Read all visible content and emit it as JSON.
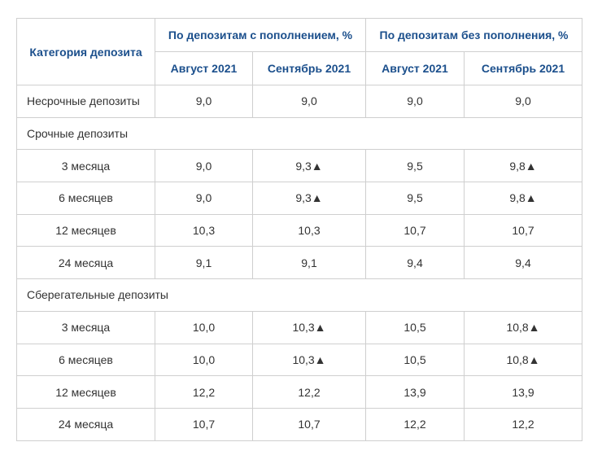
{
  "table": {
    "header": {
      "category": "Категория депозита",
      "groups": [
        "По депозитам с пополнением, %",
        "По депозитам без пополнения, %"
      ],
      "months": [
        "Август 2021",
        "Сентябрь 2021",
        "Август 2021",
        "Сентябрь 2021"
      ]
    },
    "rows": [
      {
        "label": "Несрочные депозиты",
        "cells": [
          "9,0",
          "9,0",
          "9,0",
          "9,0"
        ]
      },
      {
        "label": "Срочные депозиты"
      },
      {
        "label": "3 месяца",
        "cells": [
          "9,0",
          "9,3▲",
          "9,5",
          "9,8▲"
        ]
      },
      {
        "label": "6 месяцев",
        "cells": [
          "9,0",
          "9,3▲",
          "9,5",
          "9,8▲"
        ]
      },
      {
        "label": "12 месяцев",
        "cells": [
          "10,3",
          "10,3",
          "10,7",
          "10,7"
        ]
      },
      {
        "label": "24 месяца",
        "cells": [
          "9,1",
          "9,1",
          "9,4",
          "9,4"
        ]
      },
      {
        "label": "Сберегательные депозиты"
      },
      {
        "label": "3 месяца",
        "cells": [
          "10,0",
          "10,3▲",
          "10,5",
          "10,8▲"
        ]
      },
      {
        "label": "6 месяцев",
        "cells": [
          "10,0",
          "10,3▲",
          "10,5",
          "10,8▲"
        ]
      },
      {
        "label": "12 месяцев",
        "cells": [
          "12,2",
          "12,2",
          "13,9",
          "13,9"
        ]
      },
      {
        "label": "24 месяца",
        "cells": [
          "10,7",
          "10,7",
          "12,2",
          "12,2"
        ]
      }
    ]
  }
}
